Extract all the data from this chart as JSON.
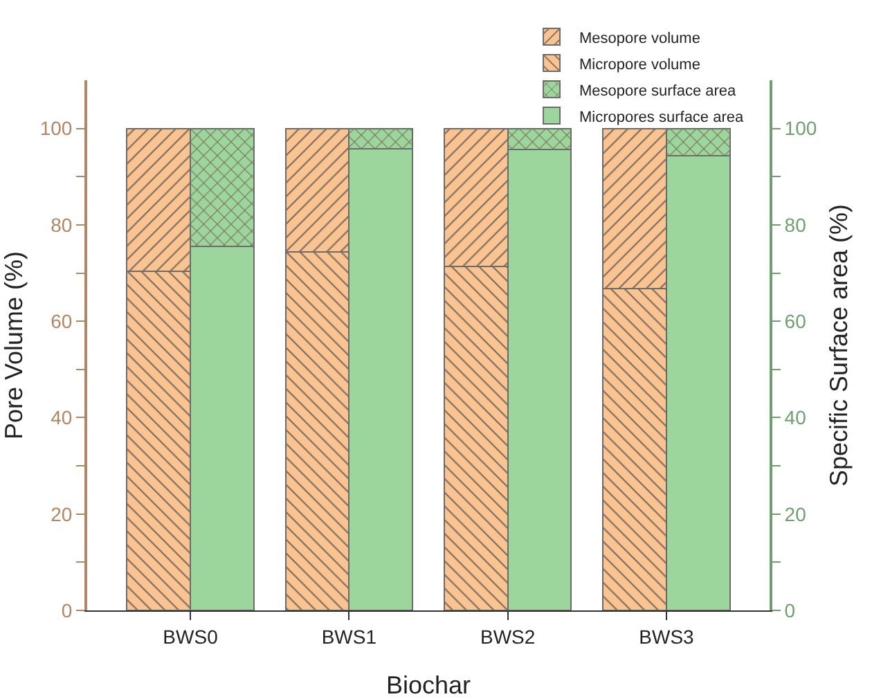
{
  "chart_data": {
    "type": "bar",
    "stacked": true,
    "xlabel": "Biochar",
    "ylabel": "Pore Volume (%)",
    "y2label": "Specific Surface area (%)",
    "categories": [
      "BWS0",
      "BWS1",
      "BWS2",
      "BWS3"
    ],
    "series": [
      {
        "name": "Micropore volume",
        "color": "#f9c392",
        "values": [
          70.4,
          74.4,
          71.4,
          66.8
        ]
      },
      {
        "name": "Mesopore volume",
        "color": "#f9c392",
        "values": [
          29.6,
          25.6,
          28.6,
          33.2
        ]
      },
      {
        "name": "Micropores surface area",
        "color": "#9cd69c",
        "axis": "y2",
        "values": [
          75.5,
          95.8,
          95.6,
          94.3
        ]
      },
      {
        "name": "Mesopore surface area",
        "color": "#9cd69c",
        "axis": "y2",
        "values": [
          24.5,
          4.2,
          4.4,
          5.7
        ]
      }
    ],
    "ylim": [
      0,
      110
    ],
    "yticks": [
      0,
      {
        "value": 10,
        "label": null
      },
      20,
      {
        "value": 30,
        "label": null
      },
      40,
      {
        "value": 50,
        "label": null
      },
      60,
      {
        "value": 70,
        "label": null
      },
      80,
      {
        "value": 90,
        "label": null
      },
      100
    ],
    "y2lim": [
      0,
      110
    ],
    "y2ticks": [
      0,
      {
        "value": 10,
        "label": null
      },
      20,
      {
        "value": 30,
        "label": null
      },
      40,
      {
        "value": 50,
        "label": null
      },
      60,
      {
        "value": 70,
        "label": null
      },
      80,
      {
        "value": 90,
        "label": null
      },
      100
    ],
    "grid": false,
    "legend": "top right"
  }
}
